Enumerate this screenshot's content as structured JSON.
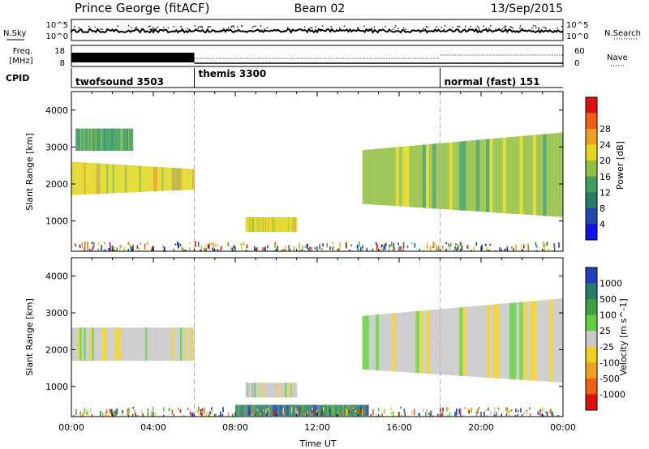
{
  "header": {
    "station": "Prince George (fitACF)",
    "beam": "Beam 02",
    "date": "13/Sep/2015"
  },
  "status_panels": {
    "nsky_label": "N.Sky",
    "nsky_ticks": [
      "10^5",
      "10^0"
    ],
    "nsearch_label": "N.Search",
    "nsearch_ticks": [
      "10^5",
      "10^0"
    ],
    "freq_label_line1": "Freq.",
    "freq_label_line2": "[MHz]",
    "freq_ticks": [
      "18",
      "8"
    ],
    "nave_label": "Nave",
    "nave_ticks": [
      "60",
      "0"
    ],
    "cpid_label": "CPID"
  },
  "cpid_segments": [
    {
      "label": "twofsound 3503",
      "start_hour": 0
    },
    {
      "label": "themis 3300",
      "start_hour": 6
    },
    {
      "label": "normal (fast) 151",
      "start_hour": 18
    }
  ],
  "chart_data": [
    {
      "type": "heatmap",
      "panel": "power",
      "ylabel": "Slant Range [km]",
      "xlabel": "",
      "y_ticks": [
        "1000",
        "2000",
        "3000",
        "4000"
      ],
      "ylim": [
        180,
        4500
      ],
      "xlim_hours": [
        0,
        24
      ],
      "colorbar_label": "Power [dB]",
      "colorbar_ticks": [
        "4",
        "8",
        "12",
        "16",
        "20",
        "24",
        "28"
      ],
      "colorbar_colors": [
        "#1010e8",
        "#2048b0",
        "#2a7a6a",
        "#40a060",
        "#90c040",
        "#e0d820",
        "#f0a020",
        "#f06010",
        "#e01010"
      ],
      "echo_bands": [
        {
          "t0": 0.0,
          "t1": 6.0,
          "r0": 1700,
          "r1": 2600,
          "level": 20
        },
        {
          "t0": 0.2,
          "t1": 3.0,
          "r0": 2900,
          "r1": 3500,
          "level": 10
        },
        {
          "t0": 8.5,
          "t1": 11.0,
          "r0": 700,
          "r1": 1100,
          "level": 18
        },
        {
          "t0": 14.2,
          "t1": 24.0,
          "r0": 1100,
          "r1": 3400,
          "level": 14
        }
      ]
    },
    {
      "type": "heatmap",
      "panel": "velocity",
      "ylabel": "Slant Range [km]",
      "xlabel": "Time UT",
      "y_ticks": [
        "1000",
        "2000",
        "3000",
        "4000"
      ],
      "ylim": [
        180,
        4500
      ],
      "x_ticks": [
        "00:00",
        "04:00",
        "08:00",
        "12:00",
        "16:00",
        "20:00",
        "00:00"
      ],
      "xlim_hours": [
        0,
        24
      ],
      "colorbar_label": "Velocity [m s^-1]",
      "colorbar_ticks": [
        "1000",
        "500",
        "100",
        "25",
        "-25",
        "-100",
        "-500",
        "-1000"
      ],
      "colorbar_colors": [
        "#2040c0",
        "#2a7a6a",
        "#40a040",
        "#60d040",
        "#c8c8c8",
        "#f0d020",
        "#f0a020",
        "#f06010",
        "#e01010"
      ],
      "echo_bands": [
        {
          "t0": 0.0,
          "t1": 6.0,
          "r0": 1700,
          "r1": 2600,
          "level": 0
        },
        {
          "t0": 8.5,
          "t1": 11.0,
          "r0": 700,
          "r1": 1100,
          "level": 0
        },
        {
          "t0": 8.0,
          "t1": 14.5,
          "r0": 200,
          "r1": 500,
          "level": 150
        },
        {
          "t0": 14.2,
          "t1": 24.0,
          "r0": 1100,
          "r1": 3400,
          "level": 0
        }
      ]
    }
  ]
}
